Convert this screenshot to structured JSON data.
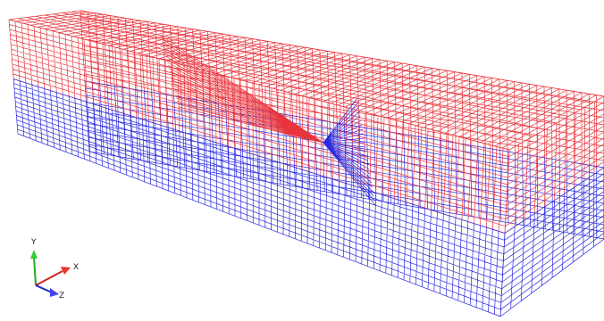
{
  "axes_triad": {
    "y_label": "Y",
    "x_label": "X",
    "z_label": "Z"
  }
}
